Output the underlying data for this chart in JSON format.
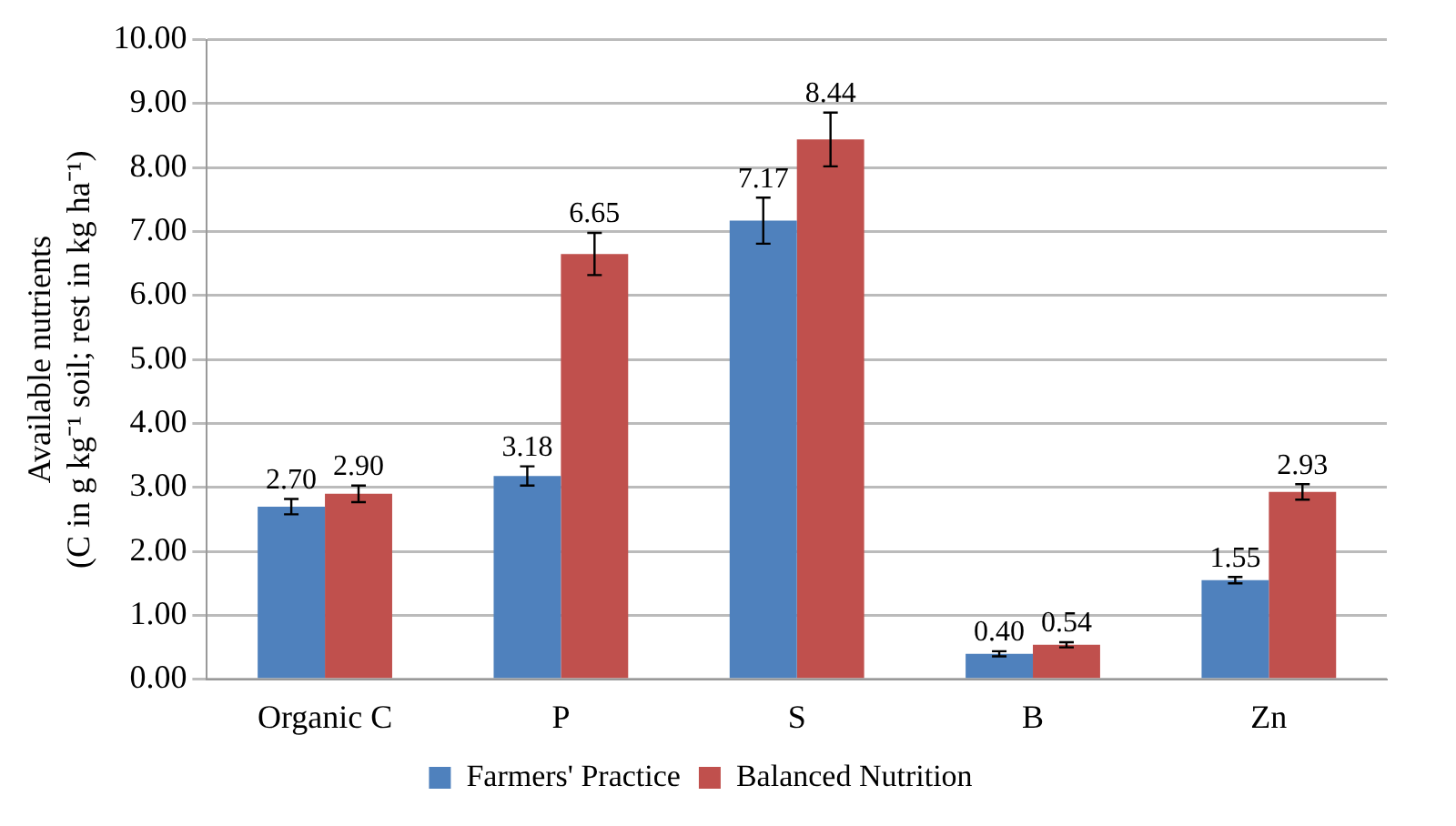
{
  "chart_data": {
    "type": "bar",
    "ylabel": "Available nutrients\n(C in g kg⁻¹ soil; rest in kg ha⁻¹)",
    "categories": [
      "Organic C",
      "P",
      "S",
      "B",
      "Zn"
    ],
    "series": [
      {
        "name": "Farmers' Practice",
        "color": "#4f81bd",
        "values": [
          2.7,
          3.18,
          7.17,
          0.4,
          1.55
        ],
        "errors": [
          0.12,
          0.15,
          0.36,
          0.04,
          0.05
        ],
        "value_labels": [
          "2.70",
          "3.18",
          "7.17",
          "0.40",
          "1.55"
        ]
      },
      {
        "name": "Balanced Nutrition",
        "color": "#c0504d",
        "values": [
          2.9,
          6.65,
          8.44,
          0.54,
          2.93
        ],
        "errors": [
          0.13,
          0.33,
          0.42,
          0.04,
          0.12
        ],
        "value_labels": [
          "2.90",
          "6.65",
          "8.44",
          "0.54",
          "2.93"
        ]
      }
    ],
    "ylim": [
      0,
      10
    ],
    "yticks": [
      {
        "value": 0,
        "label": "0.00"
      },
      {
        "value": 1,
        "label": "1.00"
      },
      {
        "value": 2,
        "label": "2.00"
      },
      {
        "value": 3,
        "label": "3.00"
      },
      {
        "value": 4,
        "label": "4.00"
      },
      {
        "value": 5,
        "label": "5.00"
      },
      {
        "value": 6,
        "label": "6.00"
      },
      {
        "value": 7,
        "label": "7.00"
      },
      {
        "value": 8,
        "label": "8.00"
      },
      {
        "value": 9,
        "label": "9.00"
      },
      {
        "value": 10,
        "label": "10.00"
      }
    ],
    "grid": "y",
    "legend": "bottom"
  }
}
